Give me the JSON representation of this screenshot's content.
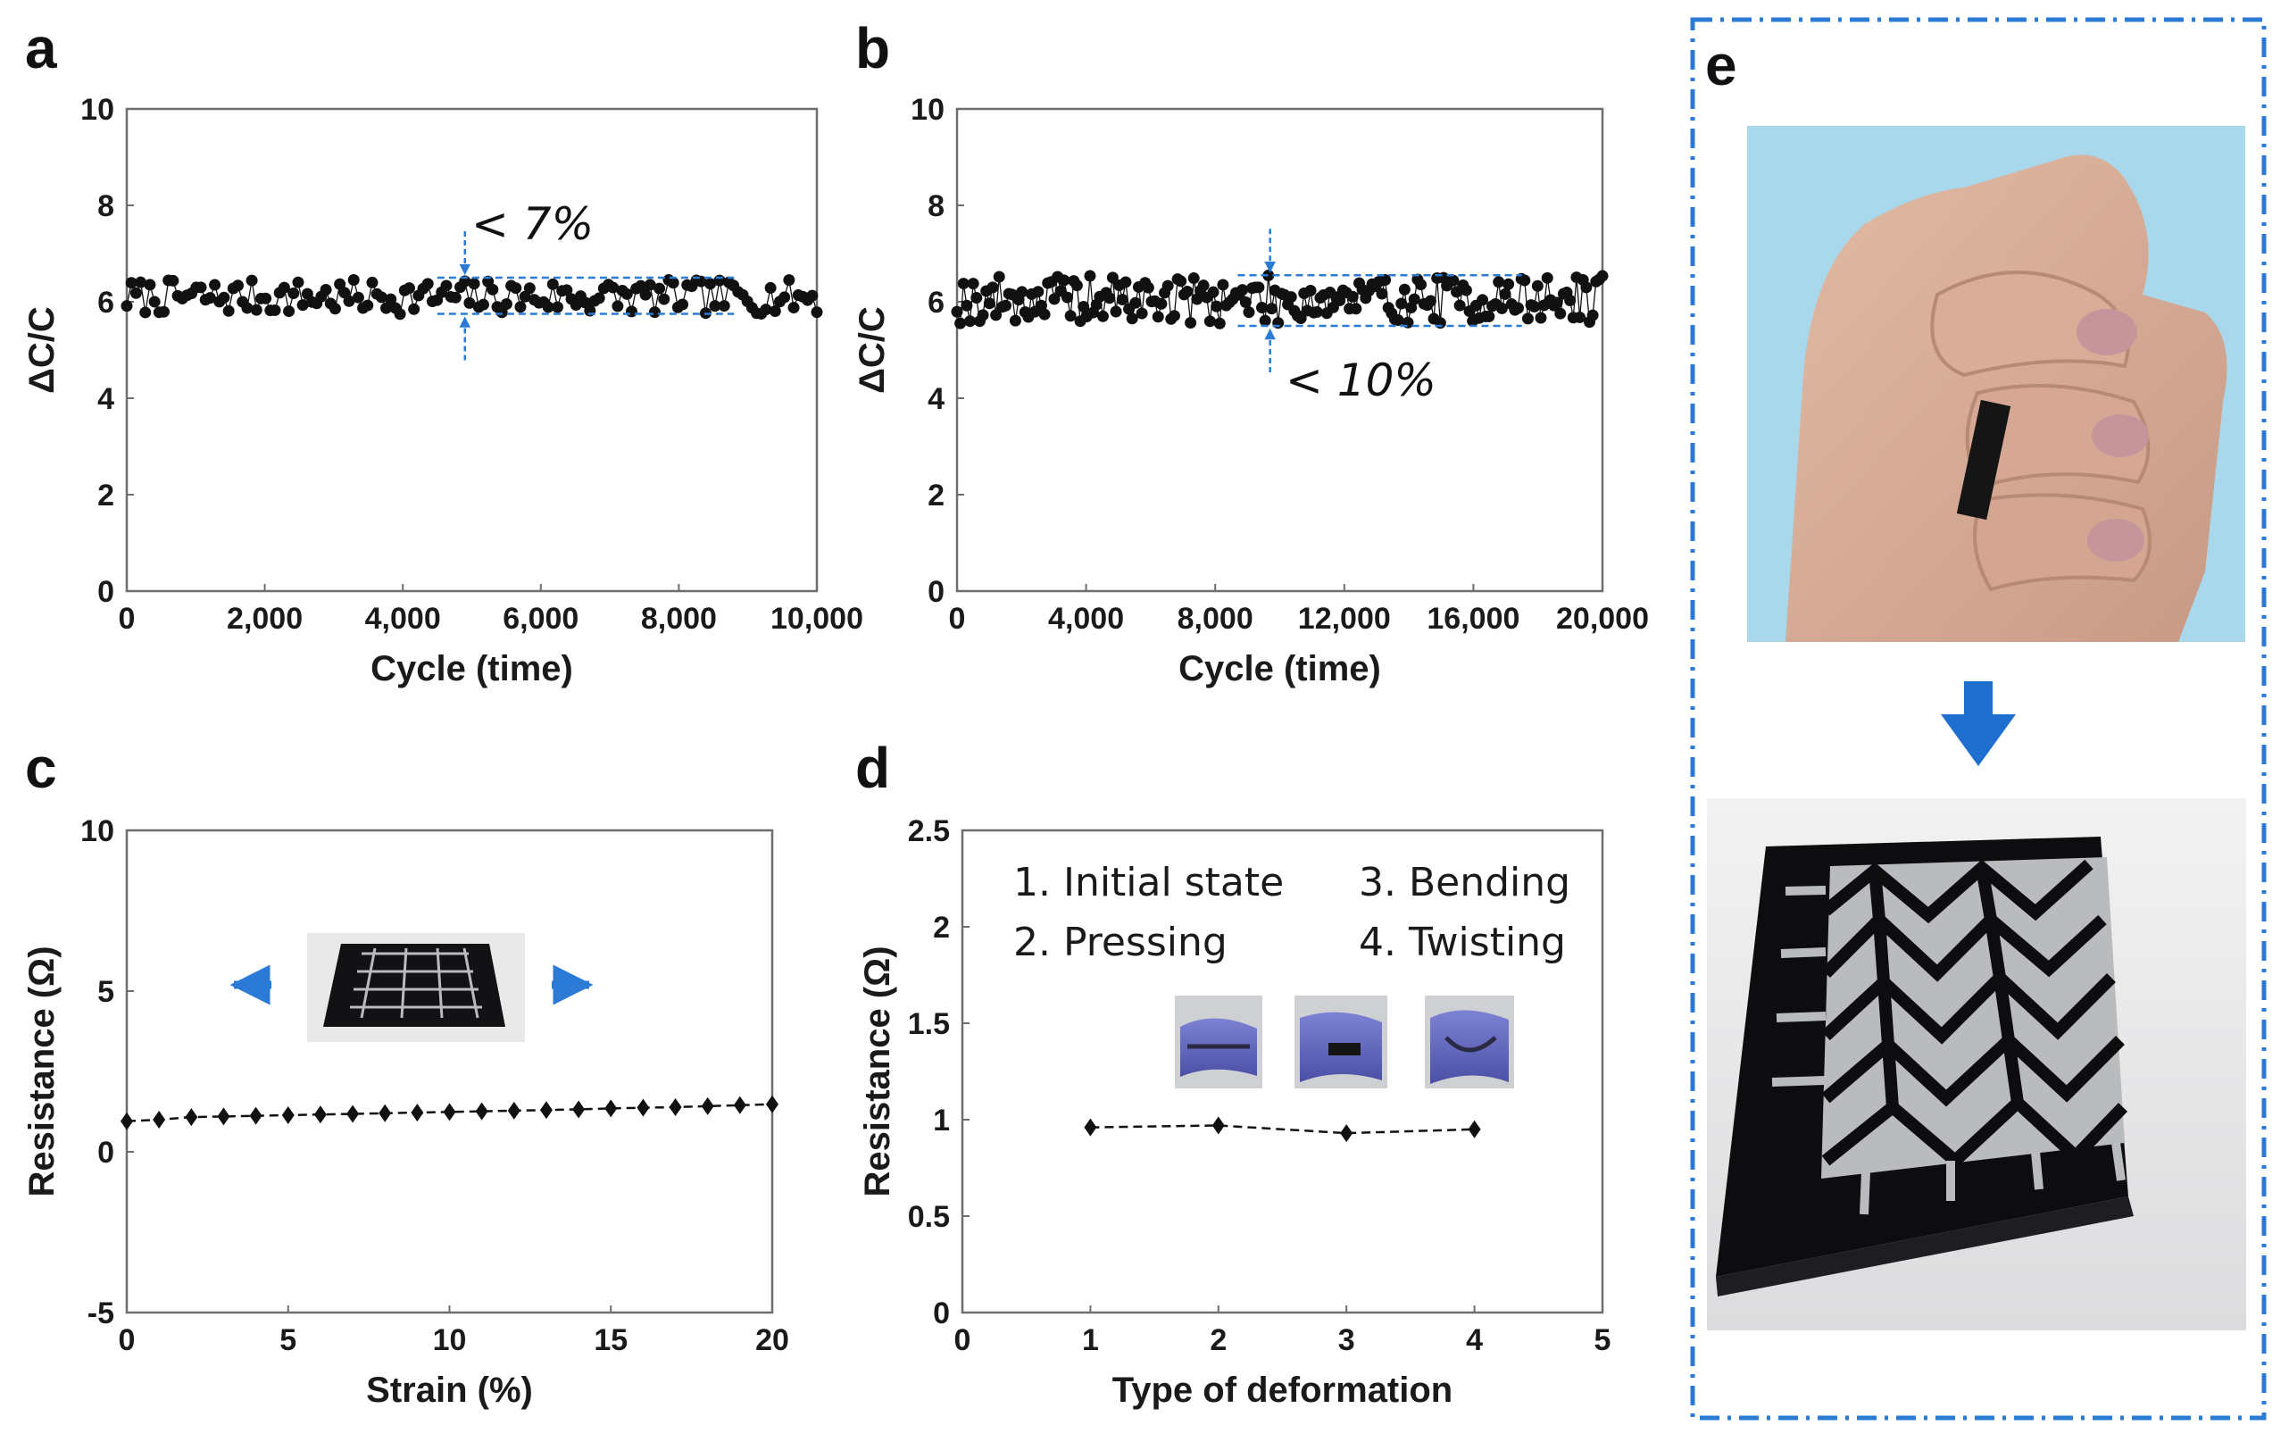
{
  "chart_data": [
    {
      "panel": "a",
      "type": "scatter",
      "xlabel": "Cycle (time)",
      "ylabel": "ΔC/C",
      "xlim": [
        0,
        10000
      ],
      "ylim": [
        0,
        10
      ],
      "x_ticks": [
        0,
        2000,
        4000,
        6000,
        8000,
        10000
      ],
      "x_tick_labels": [
        "0",
        "2,000",
        "4,000",
        "6,000",
        "8,000",
        "10,000"
      ],
      "y_ticks": [
        0,
        2,
        4,
        6,
        8,
        10
      ],
      "y_tick_labels": [
        "0",
        "2",
        "4",
        "6",
        "8",
        "10"
      ],
      "series": [
        {
          "name": "ΔC/C",
          "mean": 6.1,
          "band": [
            5.75,
            6.5
          ],
          "n_points": 150,
          "x_range": [
            0,
            10000
          ]
        }
      ],
      "annotation": "< 7%",
      "band_lines": [
        5.75,
        6.5
      ],
      "band_x": [
        4500,
        8800
      ],
      "arrow_x": 4900
    },
    {
      "panel": "b",
      "type": "scatter",
      "xlabel": "Cycle (time)",
      "ylabel": "ΔC/C",
      "xlim": [
        0,
        20000
      ],
      "ylim": [
        0,
        10
      ],
      "x_ticks": [
        0,
        4000,
        8000,
        12000,
        16000,
        20000
      ],
      "x_tick_labels": [
        "0",
        "4,000",
        "8,000",
        "12,000",
        "16,000",
        "20,000"
      ],
      "y_ticks": [
        0,
        2,
        4,
        6,
        8,
        10
      ],
      "y_tick_labels": [
        "0",
        "2",
        "4",
        "6",
        "8",
        "10"
      ],
      "series": [
        {
          "name": "ΔC/C",
          "mean": 6.05,
          "band": [
            5.5,
            6.55
          ],
          "n_points": 200,
          "x_range": [
            0,
            20000
          ]
        }
      ],
      "annotation": "< 10%",
      "band_lines": [
        5.5,
        6.55
      ],
      "band_x": [
        8700,
        17500
      ],
      "arrow_x": 9700
    },
    {
      "panel": "c",
      "type": "line",
      "xlabel": "Strain (%)",
      "ylabel": "Resistance (Ω)",
      "xlim": [
        0,
        20
      ],
      "ylim": [
        -5,
        10
      ],
      "x_ticks": [
        0,
        5,
        10,
        15,
        20
      ],
      "x_tick_labels": [
        "0",
        "5",
        "10",
        "15",
        "20"
      ],
      "y_ticks": [
        -5,
        0,
        5,
        10
      ],
      "y_tick_labels": [
        "-5",
        "0",
        "5",
        "10"
      ],
      "x": [
        0,
        1,
        2,
        3,
        4,
        5,
        6,
        7,
        8,
        9,
        10,
        11,
        12,
        13,
        14,
        15,
        16,
        17,
        18,
        19,
        20
      ],
      "series": [
        {
          "name": "Resistance",
          "values": [
            0.95,
            1.0,
            1.08,
            1.1,
            1.12,
            1.14,
            1.16,
            1.18,
            1.2,
            1.22,
            1.24,
            1.26,
            1.28,
            1.3,
            1.32,
            1.35,
            1.37,
            1.39,
            1.42,
            1.45,
            1.48
          ]
        }
      ]
    },
    {
      "panel": "d",
      "type": "line",
      "xlabel": "Type of deformation",
      "ylabel": "Resistance (Ω)",
      "xlim": [
        0,
        5
      ],
      "ylim": [
        0,
        2.5
      ],
      "x_ticks": [
        0,
        1,
        2,
        3,
        4,
        5
      ],
      "x_tick_labels": [
        "0",
        "1",
        "2",
        "3",
        "4",
        "5"
      ],
      "y_ticks": [
        0,
        0.5,
        1,
        1.5,
        2,
        2.5
      ],
      "y_tick_labels": [
        "0",
        "0.5",
        "1",
        "1.5",
        "2",
        "2.5"
      ],
      "x": [
        1,
        2,
        3,
        4
      ],
      "series": [
        {
          "name": "Resistance",
          "values": [
            0.96,
            0.97,
            0.93,
            0.95
          ]
        }
      ],
      "legend": [
        "1. Initial state",
        "2. Pressing",
        "3. Bending",
        "4. Twisting"
      ]
    }
  ],
  "figure": {
    "panel_labels": [
      "a",
      "b",
      "c",
      "d",
      "e"
    ]
  },
  "colors": {
    "accent_blue": "#2b7bd6",
    "marker": "#111111",
    "axis_frame": "#6e6e6e",
    "fist_background": "#a9d8ec",
    "device_black": "#0d0d0f",
    "electrode_gray": "#b9bbbd"
  }
}
